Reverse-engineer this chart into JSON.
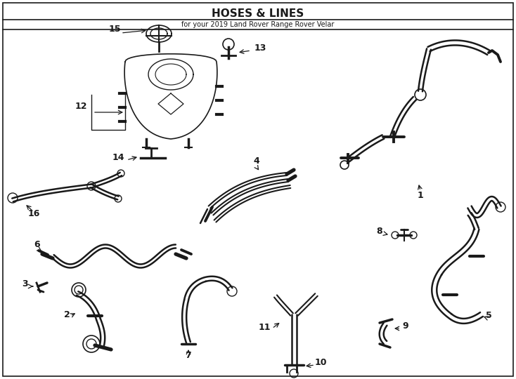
{
  "title": "HOSES & LINES",
  "subtitle": "for your 2019 Land Rover Range Rover Velar",
  "bg_color": "#ffffff",
  "line_color": "#1a1a1a",
  "fig_width": 7.34,
  "fig_height": 5.4,
  "dpi": 100,
  "border_lw": 1.2,
  "hose_lw": 1.8
}
